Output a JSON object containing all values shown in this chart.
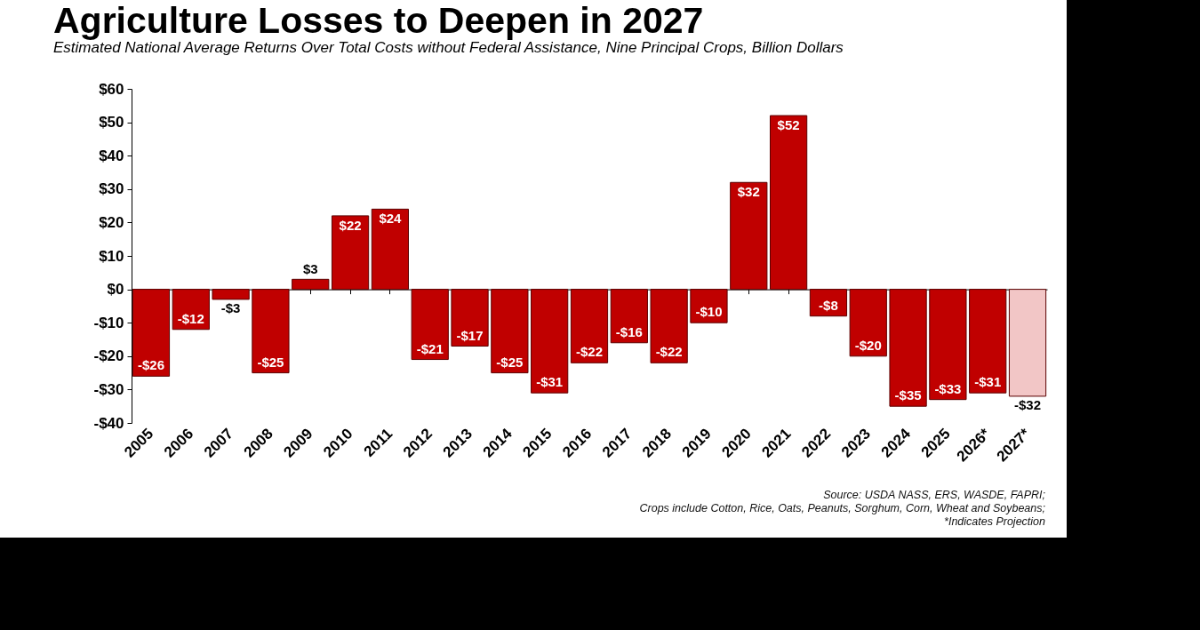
{
  "chart_data": {
    "type": "bar",
    "title": "Agriculture Losses to Deepen in 2027",
    "subtitle": "Estimated National Average Returns Over Total Costs without Federal Assistance, Nine Principal Crops, Billion Dollars",
    "categories": [
      "2005",
      "2006",
      "2007",
      "2008",
      "2009",
      "2010",
      "2011",
      "2012",
      "2013",
      "2014",
      "2015",
      "2016",
      "2017",
      "2018",
      "2019",
      "2020",
      "2021",
      "2022",
      "2023",
      "2024",
      "2025",
      "2026*",
      "2027*"
    ],
    "values": [
      -26,
      -12,
      -3,
      -25,
      3,
      22,
      24,
      -21,
      -17,
      -25,
      -31,
      -22,
      -16,
      -22,
      -10,
      32,
      52,
      -8,
      -20,
      -35,
      -33,
      -31,
      -32
    ],
    "value_labels": [
      "-$26",
      "-$12",
      "-$3",
      "-$25",
      "$3",
      "$22",
      "$24",
      "-$21",
      "-$17",
      "-$25",
      "-$31",
      "-$22",
      "-$16",
      "-$22",
      "-$10",
      "$32",
      "$52",
      "-$8",
      "-$20",
      "-$35",
      "-$33",
      "-$31",
      "-$32"
    ],
    "colors": [
      "#c00000",
      "#c00000",
      "#c00000",
      "#c00000",
      "#c00000",
      "#c00000",
      "#c00000",
      "#c00000",
      "#c00000",
      "#c00000",
      "#c00000",
      "#c00000",
      "#c00000",
      "#c00000",
      "#c00000",
      "#c00000",
      "#c00000",
      "#c00000",
      "#c00000",
      "#c00000",
      "#c00000",
      "#c00000",
      "#f2c6c6"
    ],
    "ylim": [
      -40,
      60
    ],
    "yticks": [
      {
        "value": 60,
        "label": "$60"
      },
      {
        "value": 50,
        "label": "$50"
      },
      {
        "value": 40,
        "label": "$40"
      },
      {
        "value": 30,
        "label": "$30"
      },
      {
        "value": 20,
        "label": "$20"
      },
      {
        "value": 10,
        "label": "$10"
      },
      {
        "value": 0,
        "label": "$0"
      },
      {
        "value": -10,
        "label": "-$10"
      },
      {
        "value": -20,
        "label": "-$20"
      },
      {
        "value": -30,
        "label": "-$30"
      },
      {
        "value": -40,
        "label": "-$40"
      }
    ],
    "annotations": [
      "Source: USDA NASS, ERS, WASDE, FAPRI;",
      "Crops include Cotton, Rice, Oats, Peanuts, Sorghum, Corn, Wheat and Soybeans;",
      "*Indicates Projection"
    ]
  }
}
